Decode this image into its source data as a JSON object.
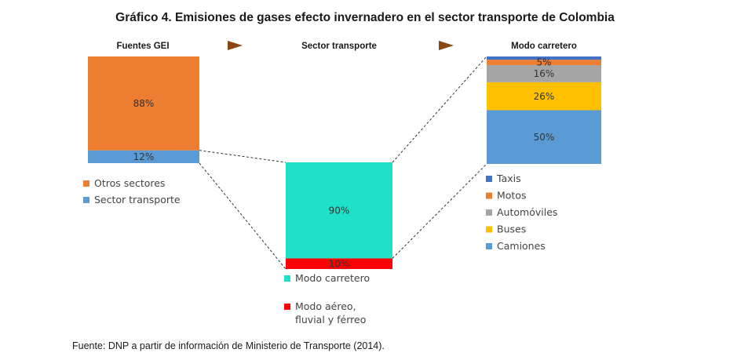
{
  "title": "Gráfico 4. Emisiones de gases efecto invernadero en el sector transporte de Colombia",
  "source": "Fuente: DNP a partir de información de Ministerio de Transporte (2014).",
  "colors": {
    "arrow": "#8B4513",
    "connector": "#333333"
  },
  "chart_data": [
    {
      "type": "bar",
      "stacked": true,
      "title": "Fuentes GEI",
      "unit": "%",
      "series": [
        {
          "name": "Sector transporte",
          "value": 12,
          "label": "12%",
          "color": "#5B9BD5"
        },
        {
          "name": "Otros sectores",
          "value": 88,
          "label": "88%",
          "color": "#ED7D31"
        }
      ],
      "legend_order": [
        "Otros sectores",
        "Sector transporte"
      ]
    },
    {
      "type": "bar",
      "stacked": true,
      "title": "Sector transporte",
      "unit": "%",
      "series": [
        {
          "name": "Modo aéreo, fluvial y férreo",
          "legend_lines": [
            "Modo aéreo,",
            "fluvial y férreo"
          ],
          "value": 10,
          "label": "10%",
          "color": "#FF0000"
        },
        {
          "name": "Modo carretero",
          "legend_lines": [
            "Modo carretero"
          ],
          "value": 90,
          "label": "90%",
          "color": "#1FE0C8"
        }
      ],
      "legend_order": [
        "Modo carretero",
        "Modo aéreo, fluvial y férreo"
      ]
    },
    {
      "type": "bar",
      "stacked": true,
      "title": "Modo carretero",
      "unit": "%",
      "series": [
        {
          "name": "Camiones",
          "value": 50,
          "label": "50%",
          "color": "#5B9BD5"
        },
        {
          "name": "Buses",
          "value": 26,
          "label": "26%",
          "color": "#FFC000"
        },
        {
          "name": "Automóviles",
          "value": 16,
          "label": "16%",
          "color": "#A5A5A5"
        },
        {
          "name": "Motos",
          "value": 5,
          "label": "5%",
          "color": "#ED7D31"
        },
        {
          "name": "Taxis",
          "value": 3,
          "label": "",
          "color": "#4472C4"
        }
      ],
      "legend_order": [
        "Taxis",
        "Motos",
        "Automóviles",
        "Buses",
        "Camiones"
      ]
    }
  ]
}
